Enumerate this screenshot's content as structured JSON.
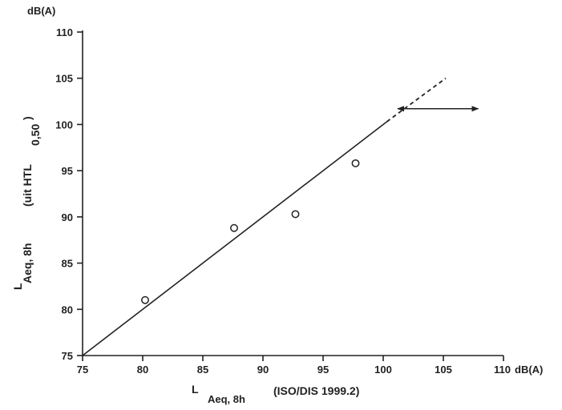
{
  "chart_data": {
    "type": "scatter",
    "y_unit": "dB(A)",
    "x_unit_suffix": "dB(A)",
    "ylabel": {
      "main": "L",
      "sub": "Aeq, 8h",
      "qualifier": "(uit HTL",
      "qualifier_sub": "0,50",
      "qualifier_close": ")"
    },
    "xlabel": {
      "main": "L",
      "sub": "Aeq, 8h",
      "qualifier": "(ISO/DIS 1999.2)"
    },
    "xlim": [
      75,
      110
    ],
    "ylim": [
      75,
      110
    ],
    "x_ticks": [
      75,
      80,
      85,
      90,
      95,
      100,
      105,
      110
    ],
    "y_ticks": [
      75,
      80,
      85,
      90,
      95,
      100,
      105,
      110
    ],
    "points": [
      {
        "x": 80.2,
        "y": 81.0
      },
      {
        "x": 87.6,
        "y": 88.8
      },
      {
        "x": 92.7,
        "y": 90.3
      },
      {
        "x": 97.7,
        "y": 95.8
      }
    ],
    "line": {
      "from": [
        75,
        75
      ],
      "to": [
        100.3,
        100.3
      ]
    },
    "line_extension": {
      "from": [
        100.3,
        100.3
      ],
      "to": [
        105.2,
        105.0
      ]
    },
    "arrow": {
      "y": 101.7,
      "x_from": 101.2,
      "x_to": 107.9
    }
  }
}
